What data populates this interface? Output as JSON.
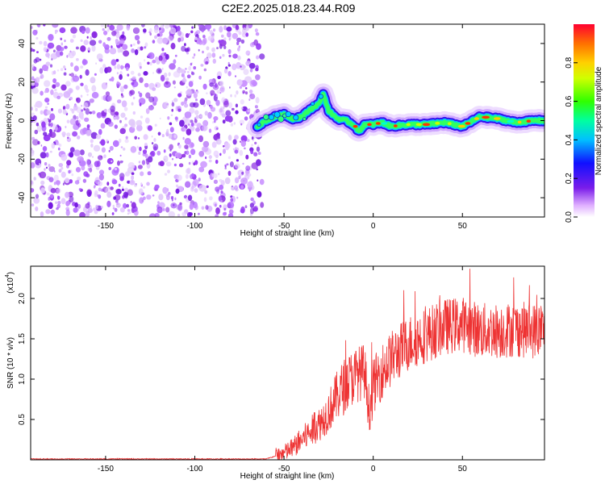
{
  "title": "C2E2.2025.018.23.44.R09",
  "chart_data": [
    {
      "type": "heatmap",
      "name": "spectrogram",
      "xlabel": "Height of straight line (km)",
      "ylabel": "Frequency (Hz)",
      "xlim": [
        -192,
        96
      ],
      "ylim": [
        -50,
        50
      ],
      "xticks": [
        -150,
        -100,
        -50,
        0,
        50
      ],
      "yticks": [
        -40,
        -20,
        0,
        20,
        40
      ],
      "noise_region_x": [
        -192,
        -65
      ],
      "ridge": {
        "x": [
          -65,
          -60,
          -55,
          -50,
          -45,
          -40,
          -35,
          -30,
          -28,
          -25,
          -20,
          -15,
          -10,
          -8,
          -5,
          0,
          5,
          10,
          20,
          30,
          40,
          50,
          60,
          70,
          80,
          90,
          96
        ],
        "y": [
          -3,
          0,
          2,
          3,
          1,
          2,
          6,
          9,
          14,
          5,
          1,
          0,
          -3,
          -6,
          -2,
          -2,
          -1,
          -3,
          -2,
          -2,
          -1,
          -3,
          2,
          1,
          -1,
          0,
          0
        ]
      },
      "colorbar": {
        "label": "Normalized spectral amplitude",
        "range": [
          0.0,
          1.0
        ],
        "ticks": [
          "0.0",
          "0.2",
          "0.4",
          "0.6",
          "0.8"
        ]
      }
    },
    {
      "type": "line",
      "name": "snr",
      "xlabel": "Height of straight line (km)",
      "ylabel": "SNR (10 * v/v)",
      "y_multiplier": "(x10",
      "y_multiplier_exp": "4",
      "y_multiplier_close": ")",
      "xlim": [
        -192,
        96
      ],
      "ylim": [
        0,
        2.4
      ],
      "xticks": [
        -150,
        -100,
        -50,
        0,
        50
      ],
      "yticks": [
        0.5,
        1.0,
        1.5,
        2.0
      ],
      "ytick_labels": [
        "0.5",
        "1.0",
        "1.5",
        "2.0"
      ],
      "color": "#ee3333",
      "trend": {
        "x": [
          -192,
          -60,
          -50,
          -45,
          -40,
          -35,
          -30,
          -25,
          -20,
          -15,
          -10,
          -5,
          -2,
          0,
          2,
          5,
          10,
          20,
          30,
          40,
          50,
          60,
          70,
          80,
          90,
          96
        ],
        "y": [
          0.01,
          0.01,
          0.08,
          0.15,
          0.25,
          0.35,
          0.45,
          0.6,
          0.8,
          0.95,
          1.05,
          1.1,
          0.6,
          0.9,
          1.0,
          1.1,
          1.25,
          1.45,
          1.55,
          1.65,
          1.68,
          1.6,
          1.6,
          1.62,
          1.6,
          1.6
        ]
      },
      "noise_amplitude": 0.35
    }
  ]
}
